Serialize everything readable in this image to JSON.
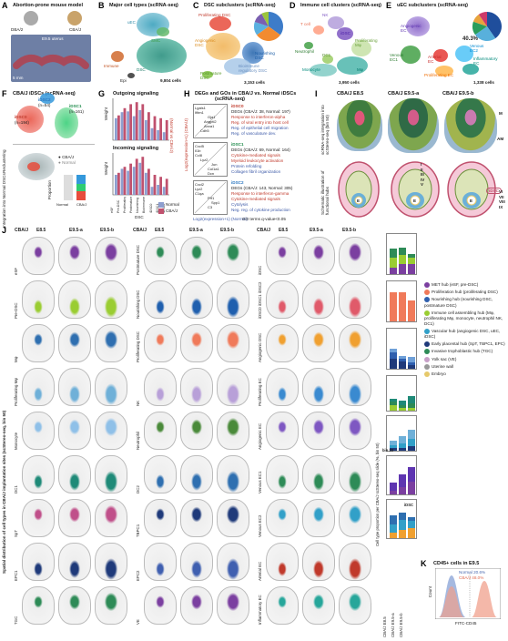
{
  "panels": {
    "A": {
      "letter": "A",
      "title": "Abortion-prone mouse model",
      "female": "DBA/2",
      "male": "CBA/J",
      "stage": "E9.5 uterus",
      "scale": "5 mm"
    },
    "B": {
      "letter": "B",
      "title": "Major cell types (scRNA-seq)",
      "labels": [
        "uEC",
        "SMC",
        "DSC",
        "Immune",
        "Epi"
      ],
      "count": "9,804 cells"
    },
    "C": {
      "letter": "C",
      "title": "DSC subclusters (scRNA-seq)",
      "labels": [
        "Proliferating DSC",
        "Angiogenic DSC",
        "Nourishing DSC",
        "Bioimmune regulatory DSC",
        "Postmature DSC"
      ],
      "count": "3,153 cells",
      "pie": [
        {
          "color": "#3d7cc9",
          "value": 35
        },
        {
          "color": "#f28b30",
          "value": 30
        },
        {
          "color": "#5ab0e0",
          "value": 15
        },
        {
          "color": "#7a5fb0",
          "value": 12
        },
        {
          "color": "#9bc53d",
          "value": 8
        }
      ]
    },
    "D": {
      "letter": "D",
      "title": "Immune cell clusters (scRNA-seq)",
      "labels": [
        "NK",
        "T cell",
        "iDSC",
        "Neutrophil",
        "Proliferating Mφ",
        "DC1",
        "Monocyte",
        "Mφ"
      ],
      "count": "3,950 cells"
    },
    "E": {
      "letter": "E",
      "title": "uEC subclusters (scRNA-seq)",
      "labels": [
        "Angiogenic EC",
        "Venous EC1",
        "Arterial EC",
        "Venous EC2",
        "Inflammatory EC",
        "Proliferating EC"
      ],
      "pct": "40.3%",
      "count": "1,338 cells",
      "pie": [
        {
          "color": "#1f4e9c",
          "value": 40.3
        },
        {
          "color": "#58b0dc",
          "value": 25
        },
        {
          "color": "#2a9d5b",
          "value": 15
        },
        {
          "color": "#e8a33d",
          "value": 10
        },
        {
          "color": "#cc3a6a",
          "value": 9.7
        }
      ]
    },
    "F": {
      "letter": "F",
      "title": "CBA/J iDSCs (scRNA-seq)",
      "a1": "iDSC1",
      "a1n": "(n=161)",
      "a2": "iDSC2",
      "a2n": "(n=54)",
      "a3": "iDSC0",
      "a3n": "(n=194)",
      "side1": "Reclustering",
      "side2": "Integration into Normal DSCs",
      "leg1": "CBA/J",
      "leg2": "Normal",
      "prop": "Proportion",
      "ax1": "Normal",
      "ax2": "CBA/J",
      "rows": [
        "iDSC1",
        "iDSC2",
        "iDSC0"
      ]
    },
    "G": {
      "letter": "G",
      "title": "Outgoing signaling",
      "title2": "Incoming signaling",
      "ylab": "Weight",
      "side": "(Normal vs CBA/J)",
      "cats": [
        "eSF",
        "Pre-DSC",
        "Proliferating DSC",
        "Postmature DSC",
        "Nourishing DSC",
        "Bioimmune DSC",
        "iDSC0",
        "iDSC1",
        "iDSC2"
      ],
      "xtitle": "DSC",
      "legend": [
        "Normal",
        "CBA/J"
      ]
    },
    "H": {
      "letter": "H",
      "title": "DEGs and GOs in CBA/J vs. Normal iDSCs",
      "sub": "(scRNA-seq)",
      "genes1": [
        "Lgals1",
        "Ifitm1",
        "Gja1",
        "Angptl2",
        "Anxa1",
        "Cdh5"
      ],
      "genes2": [
        "Cxcl5",
        "Il1b",
        "Ccl8",
        "Lyz2",
        "Jun",
        "Col1a1",
        "Dcn"
      ],
      "genes3": [
        "Cxcl2",
        "Lyz2",
        "C1qa",
        "Prf1",
        "Spp1",
        "C3"
      ],
      "d1": "iDSC0",
      "d1t": "DEGs (CBA/J: 38, Normal: 197)",
      "g1a": "Response to interferon-alpha",
      "g1b": "Reg. of viral entry into host cell",
      "g1c": "Reg. of epithelial cell migration",
      "g1d": "Reg. of vasculature dev.",
      "d2": "iDSC1",
      "d2t": "DEGs (CBA/J: 69, Normal: 164)",
      "g2a": "Cytokine-mediated signals",
      "g2b": "Myeloid leukocyte activation",
      "g2c": "Protein refolding",
      "g2d": "Collagen fibril organization",
      "d3": "iDSC2",
      "d3t": "DEGs (CBA/J: 143, Normal: 305)",
      "g3a": "Response to interferon-gamma",
      "g3b": "Cytokine-mediated signals",
      "g3c": "Cytolysis",
      "g3d": "Neg. reg. of cytokine production",
      "ylab": "Log2(expression+1) (CBA/J)",
      "xlab": "Log2(expression+1) (Normal)",
      "xnote": "GO terms q-value<0.05"
    },
    "I": {
      "letter": "I",
      "title1": "CBA/J E8.5",
      "title2": "CBA/J E9.5-a",
      "title3": "CBA/J E9.5-b",
      "side1": "scRNA-seq integration into scStereo-seq (bin 50)",
      "side2": "Schematic illustration of functional hubs",
      "m": "M",
      "am": "AM",
      "idsc": "iDSC",
      "e": "E",
      "roman": [
        "I",
        "II",
        "III",
        "IV",
        "V",
        "VI",
        "VII",
        "VIII",
        "IX"
      ]
    },
    "J": {
      "letter": "J",
      "sidetitle": "Spatial distribution of cell types in CBA/J implantation sites (scStereo-seq, bin 50)",
      "h1": "CBA/J",
      "h2": "E8.5",
      "h3": "E9.5-a",
      "h4": "E9.5-b",
      "bin": "bin 20",
      "col1": [
        "eSF",
        "Pre-DSC",
        "Mφ",
        "Proliferating Mφ",
        "Monocyte",
        "DC1",
        "SpT",
        "EPC1",
        "TGC"
      ],
      "col2": [
        "Postmature DSC",
        "Nourishing DSC",
        "Proliferating DSC",
        "NK",
        "Neutrophil",
        "DC2",
        "TBPC1",
        "EPC2",
        "VE"
      ],
      "col3": [
        "iDSC",
        "iDSC0 iDSC1 iDSC2",
        "Angiogenic DSC",
        "Proliferating EC",
        "Angiogenic EC",
        "Venous EC1",
        "Venous EC2",
        "Arterial EC",
        "Inflammatory EC"
      ],
      "badges": [
        "I",
        "II",
        "III",
        "IV",
        "V",
        "VI",
        "VII",
        "VIII"
      ]
    },
    "K": {
      "letter": "K",
      "title": "CD45+ cells in E9.5",
      "normal": "Normal 20.6%",
      "cbaj": "CBA/J 48.0%",
      "xlab": "FITC-CD45",
      "ylab": "Count"
    },
    "bars": {
      "ylab": "Cell type proportion per CBA/J scStereo-seq slide (%, bin 50)",
      "xlabels": [
        "CBA/J E8.5",
        "CBA/J E9.5-a",
        "CBA/J E9.5-b"
      ],
      "idsc": "iDSC",
      "bin20": "bin 20"
    },
    "legend": [
      {
        "color": "#7b3fa0",
        "text": "MET hub (eSF, pre-DSC)"
      },
      {
        "color": "#f07a5a",
        "text": "Proliferation hub (proliferating DSC)"
      },
      {
        "color": "#2f5fae",
        "text": "Nourishing hub (nourishing DSC, postmature DSC)"
      },
      {
        "color": "#9acd32",
        "text": "Immune cell assembling hub (Mφ, proliferating Mφ, monocyte, neutrophil NK, DC1)"
      },
      {
        "color": "#32a0c8",
        "text": "Vascular hub (angiogenic DSC, uEC, iDSC)"
      },
      {
        "color": "#1f3a7a",
        "text": "Early placental hub (SpT, TBPC1, EPC)"
      },
      {
        "color": "#2e8b57",
        "text": "Invasive trophoblastic hub (TGC)"
      },
      {
        "color": "#c8a0c8",
        "text": "Yolk sac (VE)"
      },
      {
        "color": "#999999",
        "text": "Uterine wall"
      },
      {
        "color": "#e6c96a",
        "text": "Embryo"
      }
    ]
  }
}
